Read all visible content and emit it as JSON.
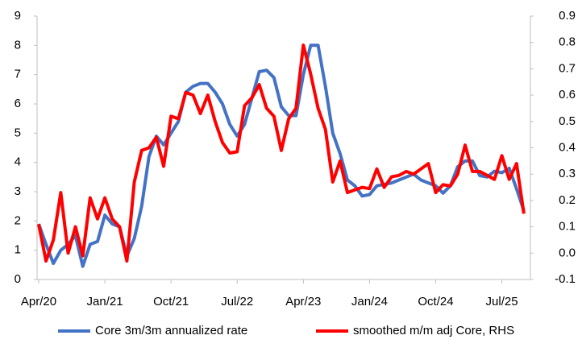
{
  "chart_data": {
    "type": "line",
    "categories": [
      "Apr/20",
      null,
      null,
      null,
      null,
      null,
      null,
      null,
      null,
      "Jan/21",
      null,
      null,
      null,
      null,
      null,
      null,
      null,
      null,
      "Oct/21",
      null,
      null,
      null,
      null,
      null,
      null,
      null,
      null,
      "Jul/22",
      null,
      null,
      null,
      null,
      null,
      null,
      null,
      null,
      "Apr/23",
      null,
      null,
      null,
      null,
      null,
      null,
      null,
      null,
      "Jan/24",
      null,
      null,
      null,
      null,
      null,
      null,
      null,
      null,
      "Oct/24",
      null,
      null,
      null,
      null,
      null,
      null,
      null,
      null,
      "Jul/25",
      null,
      null,
      null
    ],
    "series": [
      {
        "name": "Core 3m/3m annualized rate",
        "color": "#4472c4",
        "axis": "y",
        "values": [
          1.9,
          1.2,
          0.55,
          1.0,
          1.2,
          1.5,
          0.45,
          1.2,
          1.3,
          2.2,
          1.9,
          1.8,
          0.8,
          1.4,
          2.5,
          4.2,
          4.9,
          4.6,
          5.0,
          5.4,
          6.4,
          6.6,
          6.7,
          6.7,
          6.4,
          6.0,
          5.3,
          4.9,
          5.3,
          6.2,
          7.1,
          7.15,
          6.9,
          5.9,
          5.6,
          5.6,
          7.0,
          8.0,
          8.0,
          6.6,
          5.0,
          4.3,
          3.4,
          3.2,
          2.85,
          2.9,
          3.2,
          3.25,
          3.3,
          3.4,
          3.5,
          3.6,
          3.4,
          3.3,
          3.2,
          2.95,
          3.2,
          3.85,
          4.05,
          4.05,
          3.55,
          3.5,
          3.7,
          3.65,
          3.8,
          3.1,
          2.35
        ]
      },
      {
        "name": "smoothed m/m adj Core, RHS",
        "color": "#ff0000",
        "axis": "y2",
        "values": [
          0.11,
          -0.03,
          0.05,
          0.23,
          0.0,
          0.1,
          -0.01,
          0.21,
          0.13,
          0.21,
          0.13,
          0.1,
          -0.03,
          0.27,
          0.39,
          0.4,
          0.44,
          0.33,
          0.52,
          0.51,
          0.61,
          0.6,
          0.53,
          0.6,
          0.5,
          0.42,
          0.38,
          0.385,
          0.56,
          0.59,
          0.64,
          0.55,
          0.52,
          0.39,
          0.51,
          0.55,
          0.79,
          0.68,
          0.55,
          0.47,
          0.27,
          0.35,
          0.23,
          0.24,
          0.25,
          0.245,
          0.32,
          0.25,
          0.29,
          0.295,
          0.31,
          0.3,
          0.32,
          0.34,
          0.23,
          0.26,
          0.255,
          0.3,
          0.41,
          0.31,
          0.31,
          0.295,
          0.28,
          0.37,
          0.28,
          0.34,
          0.15
        ]
      }
    ],
    "ylim": [
      0,
      9
    ],
    "yticks": [
      0,
      1,
      2,
      3,
      4,
      5,
      6,
      7,
      8,
      9
    ],
    "y2lim": [
      -0.1,
      0.9
    ],
    "y2ticks": [
      -0.1,
      {
        "value": 0,
        "label": "0.0"
      },
      0.1,
      0.2,
      0.3,
      0.4,
      0.5,
      0.6,
      0.7,
      0.8,
      0.9
    ],
    "grid": false,
    "legend": "bottom"
  }
}
